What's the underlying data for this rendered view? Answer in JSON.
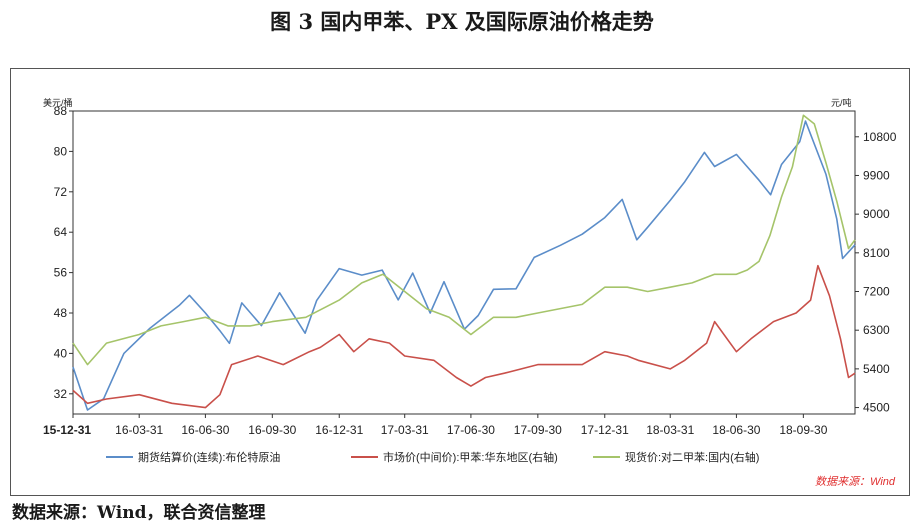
{
  "figure": {
    "title": "图 3    国内甲苯、PX 及国际原油价格走势",
    "source_note": "数据来源：Wind，联合资信整理",
    "watermark": "数据来源：Wind"
  },
  "colors": {
    "blue": "#5B8DC9",
    "red": "#C9504A",
    "green": "#A5C46A",
    "watermark": "#E03030"
  },
  "chart_data": {
    "type": "line",
    "left_axis": {
      "label": "美元/桶",
      "ticks": [
        32,
        40,
        48,
        56,
        64,
        72,
        80,
        88
      ],
      "ylim": [
        28,
        88
      ]
    },
    "right_axis": {
      "label": "元/吨",
      "ticks": [
        4500,
        5400,
        6300,
        7200,
        8100,
        9000,
        9900,
        10800
      ],
      "ylim": [
        4350,
        11400
      ]
    },
    "x_ticks": [
      "15-12-31",
      "16-03-31",
      "16-06-30",
      "16-09-30",
      "16-12-31",
      "17-03-31",
      "17-06-30",
      "17-09-30",
      "17-12-31",
      "18-03-31",
      "18-06-30",
      "18-09-30"
    ],
    "x_range": [
      "2015-12-31",
      "2018-12-10"
    ],
    "series": [
      {
        "name": "期货结算价(连续):布伦特原油",
        "axis": "left",
        "color": "#5B8DC9",
        "x": [
          "2015-12-31",
          "2016-01-20",
          "2016-02-11",
          "2016-03-10",
          "2016-04-15",
          "2016-05-25",
          "2016-06-08",
          "2016-06-30",
          "2016-07-20",
          "2016-08-02",
          "2016-08-19",
          "2016-09-15",
          "2016-10-10",
          "2016-11-14",
          "2016-11-30",
          "2016-12-31",
          "2017-01-31",
          "2017-02-28",
          "2017-03-22",
          "2017-04-11",
          "2017-05-05",
          "2017-05-24",
          "2017-06-21",
          "2017-07-10",
          "2017-07-31",
          "2017-08-31",
          "2017-09-25",
          "2017-10-31",
          "2017-11-30",
          "2017-12-31",
          "2018-01-24",
          "2018-02-13",
          "2018-02-28",
          "2018-03-31",
          "2018-04-20",
          "2018-05-17",
          "2018-05-31",
          "2018-06-30",
          "2018-07-31",
          "2018-08-16",
          "2018-08-31",
          "2018-09-25",
          "2018-10-03",
          "2018-10-31",
          "2018-11-15",
          "2018-11-23",
          "2018-12-10"
        ],
        "values": [
          37.3,
          28.8,
          31.0,
          40.0,
          45.0,
          49.5,
          51.5,
          48.0,
          44.5,
          42.0,
          50.0,
          45.5,
          52.0,
          44.0,
          50.5,
          56.8,
          55.5,
          56.5,
          50.6,
          55.9,
          48.0,
          54.2,
          44.8,
          47.5,
          52.7,
          52.8,
          59.0,
          61.4,
          63.6,
          66.9,
          70.5,
          62.5,
          65.0,
          70.3,
          74.0,
          79.8,
          77.0,
          79.4,
          74.3,
          71.4,
          77.4,
          81.9,
          86.0,
          75.5,
          66.6,
          58.8,
          61.5
        ]
      },
      {
        "name": "市场价(中间价):甲苯:华东地区(右轴)",
        "axis": "right",
        "color": "#C9504A",
        "x": [
          "2015-12-31",
          "2016-01-20",
          "2016-02-15",
          "2016-03-31",
          "2016-05-15",
          "2016-06-30",
          "2016-07-20",
          "2016-08-05",
          "2016-09-10",
          "2016-10-15",
          "2016-11-20",
          "2016-12-05",
          "2016-12-31",
          "2017-01-20",
          "2017-02-10",
          "2017-03-10",
          "2017-03-31",
          "2017-05-10",
          "2017-06-10",
          "2017-06-30",
          "2017-07-20",
          "2017-08-15",
          "2017-09-30",
          "2017-11-30",
          "2017-12-31",
          "2018-01-31",
          "2018-02-15",
          "2018-03-31",
          "2018-04-20",
          "2018-05-20",
          "2018-05-31",
          "2018-06-30",
          "2018-07-20",
          "2018-08-20",
          "2018-09-20",
          "2018-10-10",
          "2018-10-20",
          "2018-11-05",
          "2018-11-20",
          "2018-12-01",
          "2018-12-10"
        ],
        "values": [
          4900,
          4600,
          4700,
          4800,
          4600,
          4500,
          4800,
          5500,
          5700,
          5500,
          5800,
          5900,
          6200,
          5800,
          6100,
          6000,
          5700,
          5600,
          5200,
          5000,
          5200,
          5300,
          5500,
          5500,
          5800,
          5700,
          5600,
          5400,
          5600,
          6000,
          6500,
          5800,
          6100,
          6500,
          6700,
          7000,
          7800,
          7100,
          6100,
          5200,
          5300
        ]
      },
      {
        "name": "现货价:对二甲苯:国内(右轴)",
        "axis": "right",
        "color": "#A5C46A",
        "x": [
          "2015-12-31",
          "2016-01-20",
          "2016-02-15",
          "2016-03-31",
          "2016-04-30",
          "2016-05-31",
          "2016-06-30",
          "2016-07-31",
          "2016-08-31",
          "2016-09-30",
          "2016-11-15",
          "2016-12-31",
          "2017-01-31",
          "2017-03-01",
          "2017-03-31",
          "2017-04-30",
          "2017-05-31",
          "2017-06-30",
          "2017-07-31",
          "2017-08-31",
          "2017-09-30",
          "2017-11-30",
          "2017-12-31",
          "2018-01-31",
          "2018-02-28",
          "2018-03-31",
          "2018-04-30",
          "2018-05-31",
          "2018-06-30",
          "2018-07-15",
          "2018-07-31",
          "2018-08-15",
          "2018-08-31",
          "2018-09-15",
          "2018-09-30",
          "2018-10-15",
          "2018-10-31",
          "2018-11-15",
          "2018-12-01",
          "2018-12-10"
        ],
        "values": [
          6000,
          5500,
          6000,
          6200,
          6400,
          6500,
          6600,
          6400,
          6400,
          6500,
          6600,
          7000,
          7400,
          7600,
          7200,
          6800,
          6600,
          6200,
          6600,
          6600,
          6700,
          6900,
          7300,
          7300,
          7200,
          7300,
          7400,
          7600,
          7600,
          7700,
          7900,
          8500,
          9400,
          10100,
          11300,
          11100,
          10200,
          9300,
          8200,
          8400
        ]
      }
    ]
  }
}
